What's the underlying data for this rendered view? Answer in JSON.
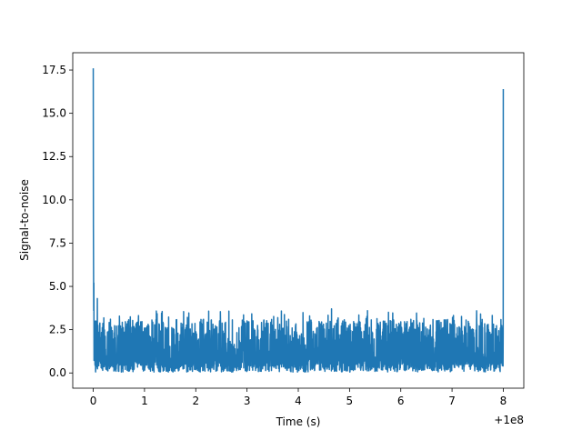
{
  "chart_data": {
    "type": "line",
    "title": "",
    "xlabel": "Time (s)",
    "ylabel": "Signal-to-noise",
    "x_offset_label": "+1e8",
    "xlim": [
      -0.4,
      8.4
    ],
    "ylim": [
      -0.88,
      18.5
    ],
    "x_ticks": [
      0,
      1,
      2,
      3,
      4,
      5,
      6,
      7,
      8
    ],
    "x_tick_labels": [
      "0",
      "1",
      "2",
      "3",
      "4",
      "5",
      "6",
      "7",
      "8"
    ],
    "y_ticks": [
      0.0,
      2.5,
      5.0,
      7.5,
      10.0,
      12.5,
      15.0,
      17.5
    ],
    "y_tick_labels": [
      "0.0",
      "2.5",
      "5.0",
      "7.5",
      "10.0",
      "12.5",
      "15.0",
      "17.5"
    ],
    "grid": false,
    "series": [
      {
        "color": "#1f77b4",
        "x_start": 0.0,
        "x_end": 8.0,
        "start_peak": 17.6,
        "end_peak": 16.4,
        "noise_floor": 0.05,
        "noise_typical_max": 3.3,
        "noise_max": 4.3
      }
    ]
  }
}
